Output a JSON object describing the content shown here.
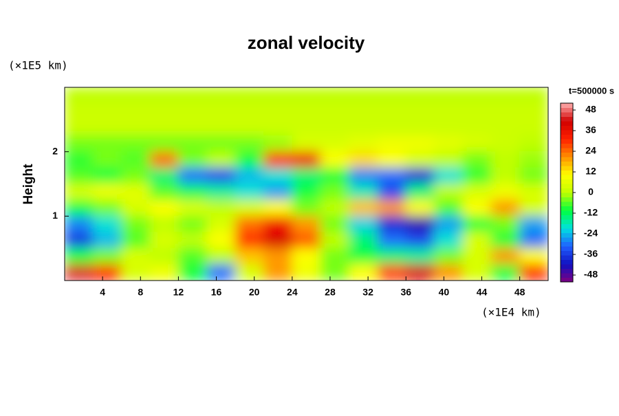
{
  "chart_data": {
    "type": "heatmap",
    "title": "zonal velocity",
    "x_unit": "(×1E4 km)",
    "y_unit": "(×1E5 km)",
    "y_label": "Height",
    "time_label": "t=500000 s",
    "xlim": [
      0,
      51
    ],
    "ylim": [
      0,
      3
    ],
    "xticks": [
      4,
      8,
      12,
      16,
      20,
      24,
      28,
      32,
      36,
      40,
      44,
      48
    ],
    "yticks": [
      1,
      2
    ],
    "x": [
      1.5,
      4.5,
      7.5,
      10.5,
      13.5,
      16.5,
      19.5,
      22.5,
      25.5,
      28.5,
      31.5,
      34.5,
      37.5,
      40.5,
      43.5,
      46.5,
      49.5
    ],
    "y": [
      2.875,
      2.625,
      2.375,
      2.125,
      1.875,
      1.625,
      1.375,
      1.125,
      0.875,
      0.625,
      0.375,
      0.125
    ],
    "z": [
      [
        0,
        0,
        0,
        0,
        0,
        0,
        0,
        0,
        0,
        0,
        0,
        0,
        0,
        0,
        0,
        0,
        0
      ],
      [
        2,
        2,
        2,
        2,
        2,
        2,
        2,
        2,
        2,
        2,
        2,
        2,
        2,
        2,
        2,
        2,
        2
      ],
      [
        2,
        2,
        2,
        2,
        2,
        2,
        2,
        2,
        2,
        2,
        2,
        2,
        2,
        2,
        2,
        2,
        2
      ],
      [
        -4,
        -4,
        -4,
        -4,
        -4,
        -4,
        -4,
        -2,
        4,
        4,
        6,
        8,
        8,
        6,
        4,
        2,
        0
      ],
      [
        -8,
        -4,
        -6,
        24,
        -4,
        0,
        -10,
        30,
        34,
        10,
        14,
        10,
        4,
        0,
        -4,
        0,
        -2
      ],
      [
        -6,
        -10,
        -4,
        -14,
        -30,
        -34,
        -24,
        -20,
        -14,
        -10,
        -28,
        -30,
        -38,
        -20,
        -8,
        0,
        -4
      ],
      [
        4,
        8,
        6,
        -6,
        -12,
        -16,
        -20,
        -26,
        -10,
        -4,
        -18,
        -34,
        -14,
        0,
        4,
        8,
        4
      ],
      [
        -10,
        -4,
        4,
        10,
        4,
        0,
        4,
        10,
        -4,
        0,
        16,
        20,
        10,
        -6,
        10,
        20,
        4
      ],
      [
        -28,
        -20,
        -4,
        0,
        -4,
        4,
        24,
        34,
        20,
        -4,
        -22,
        -38,
        -44,
        -26,
        -10,
        -4,
        -26
      ],
      [
        -36,
        -24,
        -6,
        4,
        0,
        10,
        30,
        40,
        26,
        0,
        -14,
        -30,
        -34,
        -20,
        4,
        -10,
        -30
      ],
      [
        -10,
        -4,
        4,
        0,
        -6,
        0,
        16,
        20,
        10,
        -4,
        -10,
        -14,
        -16,
        -4,
        4,
        20,
        10
      ],
      [
        44,
        30,
        4,
        8,
        -10,
        -30,
        4,
        20,
        8,
        -4,
        10,
        28,
        40,
        20,
        4,
        -10,
        30
      ]
    ],
    "clim": [
      -52,
      52
    ],
    "cticks": [
      -48,
      -36,
      -24,
      -12,
      0,
      12,
      24,
      36,
      48
    ],
    "colormap": [
      "#800080",
      "#1010c0",
      "#2060ff",
      "#00e0e0",
      "#00ff40",
      "#c0ff00",
      "#ffff00",
      "#ff9000",
      "#ff2000",
      "#d00000",
      "#ffb0b0"
    ]
  }
}
